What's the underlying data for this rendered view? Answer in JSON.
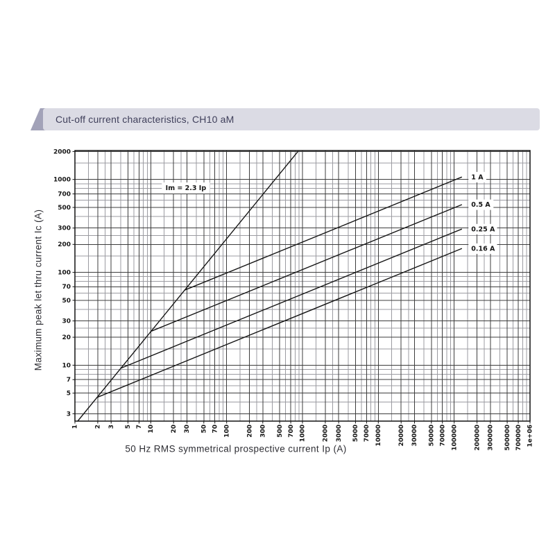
{
  "header": {
    "title": "Cut-off current characteristics, CH10 aM",
    "banner_bg": "#dbdbe4",
    "accent_color": "#a2a2b8",
    "title_color": "#3f3f5a"
  },
  "chart_data": {
    "type": "line",
    "x_scale": "log",
    "y_scale": "log",
    "xlim": [
      1,
      1000000
    ],
    "ylim": [
      2.5,
      2050
    ],
    "xlabel": "50 Hz RMS symmetrical prospective current Ip (A)",
    "ylabel": "Maximum peak let thru current Ic (A)",
    "x_tick_values": [
      1,
      2,
      3,
      5,
      7,
      10,
      20,
      30,
      50,
      70,
      100,
      200,
      300,
      500,
      700,
      1000,
      2000,
      3000,
      5000,
      7000,
      10000,
      20000,
      30000,
      50000,
      70000,
      100000,
      200000,
      300000,
      500000,
      700000,
      1000000
    ],
    "x_tick_labels": [
      "1",
      "2",
      "3",
      "5",
      "7",
      "10",
      "20",
      "30",
      "50",
      "70",
      "100",
      "200",
      "300",
      "500",
      "700",
      "1000",
      "2000",
      "3000",
      "5000",
      "7000",
      "10000",
      "20000",
      "30000",
      "50000",
      "70000",
      "100000",
      "200000",
      "300000",
      "500000",
      "700000",
      "1e+06"
    ],
    "y_tick_values": [
      3,
      5,
      7,
      10,
      20,
      30,
      50,
      70,
      100,
      200,
      300,
      500,
      700,
      1000,
      2000
    ],
    "y_tick_labels": [
      "3",
      "5",
      "7",
      "10",
      "20",
      "30",
      "50",
      "70",
      "100",
      "200",
      "300",
      "500",
      "700",
      "1000",
      "2000"
    ],
    "grid": {
      "major_mantissas": [
        1,
        2,
        3,
        5,
        7
      ],
      "minor_mantissas": [
        1.5,
        2.5,
        4,
        6,
        8,
        9
      ],
      "major_color": "#3c3c3c",
      "minor_color": "#9b9ba1",
      "grid_on": true
    },
    "frame_color": "#111111",
    "line_color": "#161616",
    "text_color": "#161616",
    "annotation": {
      "text": "Im = 2.3 Ip",
      "x": 29,
      "y": 810
    },
    "legend_position": "labels-at-line-ends",
    "series": [
      {
        "name": "im-peak-line",
        "label": "",
        "points": [
          [
            1.087,
            2.5
          ],
          [
            869.6,
            2000
          ]
        ]
      },
      {
        "name": "fuse-1A",
        "label": "1 A",
        "points": [
          [
            28,
            64.4
          ],
          [
            125000,
            1060
          ]
        ]
      },
      {
        "name": "fuse-0.5A",
        "label": "0.5 A",
        "points": [
          [
            10,
            23.1
          ],
          [
            125000,
            535
          ]
        ]
      },
      {
        "name": "fuse-0.25A",
        "label": "0.25 A",
        "points": [
          [
            4.06,
            9.3
          ],
          [
            125000,
            292
          ]
        ]
      },
      {
        "name": "fuse-0.16A",
        "label": "0.16 A",
        "points": [
          [
            1.96,
            4.5
          ],
          [
            125000,
            180
          ]
        ]
      }
    ]
  }
}
